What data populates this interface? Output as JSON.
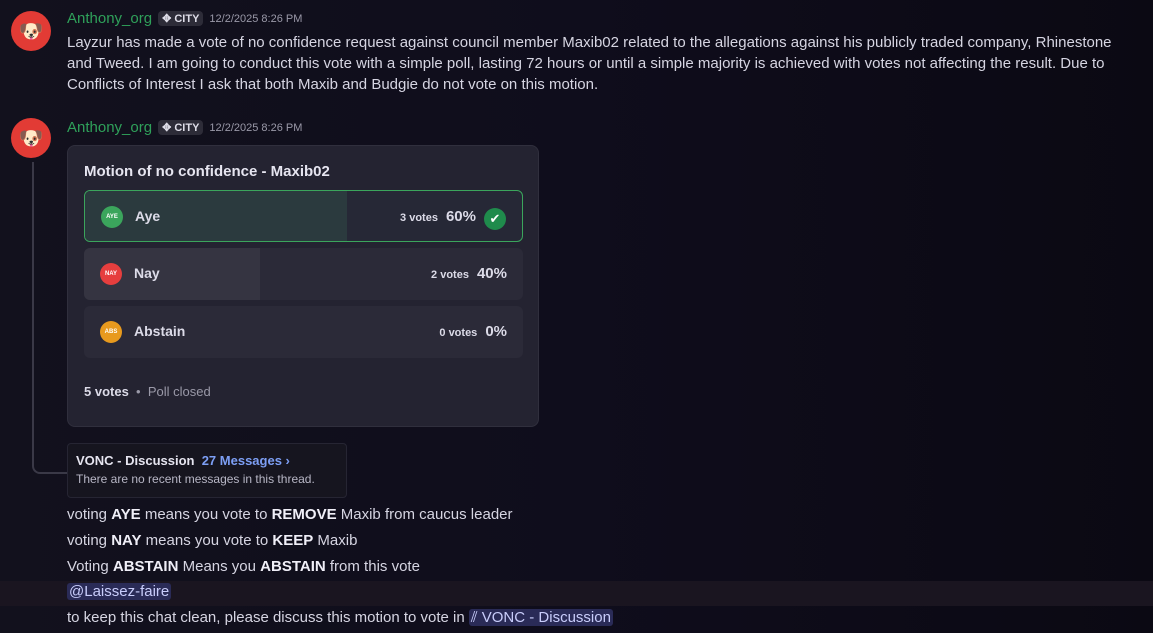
{
  "messages": [
    {
      "author": "Anthony_org",
      "tag": "CITY",
      "timestamp": "12/2/2025 8:26 PM",
      "text": "Layzur has made a vote of no confidence request against council member Maxib02 related to the allegations against his publicly traded company, Rhinestone and Tweed. I am going to conduct this vote with a simple poll, lasting 72 hours or until a simple majority is achieved with votes not affecting the result. Due to Conflicts of Interest I ask that both Maxib and Budgie do not vote on this motion."
    },
    {
      "author": "Anthony_org",
      "tag": "CITY",
      "timestamp": "12/2/2025 8:26 PM"
    }
  ],
  "poll": {
    "question": "Motion of no confidence - Maxib02",
    "options": [
      {
        "label": "Aye",
        "badge": "AYE",
        "votes": "3 votes",
        "percent": "60%",
        "fraction": 0.6,
        "color": "#3ba55c",
        "winner": true
      },
      {
        "label": "Nay",
        "badge": "NAY",
        "votes": "2 votes",
        "percent": "40%",
        "fraction": 0.4,
        "color": "#e63e3e",
        "winner": false
      },
      {
        "label": "Abstain",
        "badge": "ABS",
        "votes": "0 votes",
        "percent": "0%",
        "fraction": 0,
        "color": "#e89a1e",
        "winner": false
      }
    ],
    "total": "5 votes",
    "separator": "•",
    "status": "Poll closed"
  },
  "thread": {
    "name": "VONC - Discussion",
    "count": "27 Messages ›",
    "preview": "There are no recent messages in this thread."
  },
  "lines": [
    [
      {
        "t": "voting "
      },
      {
        "t": "AYE",
        "b": 1
      },
      {
        "t": " means you vote to "
      },
      {
        "t": "REMOVE",
        "b": 1
      },
      {
        "t": " Maxib from caucus leader"
      }
    ],
    [
      {
        "t": "voting "
      },
      {
        "t": "NAY",
        "b": 1
      },
      {
        "t": " means you vote to "
      },
      {
        "t": "KEEP",
        "b": 1
      },
      {
        "t": " Maxib"
      }
    ],
    [
      {
        "t": "Voting "
      },
      {
        "t": "ABSTAIN",
        "b": 1
      },
      {
        "t": " Means you "
      },
      {
        "t": "ABSTAIN",
        "b": 1
      },
      {
        "t": " from this vote"
      }
    ]
  ],
  "mention": "@Laissez-faire",
  "final_line": "to keep this chat clean, please discuss this motion to vote in ",
  "channel_link": "VONC - Discussion"
}
